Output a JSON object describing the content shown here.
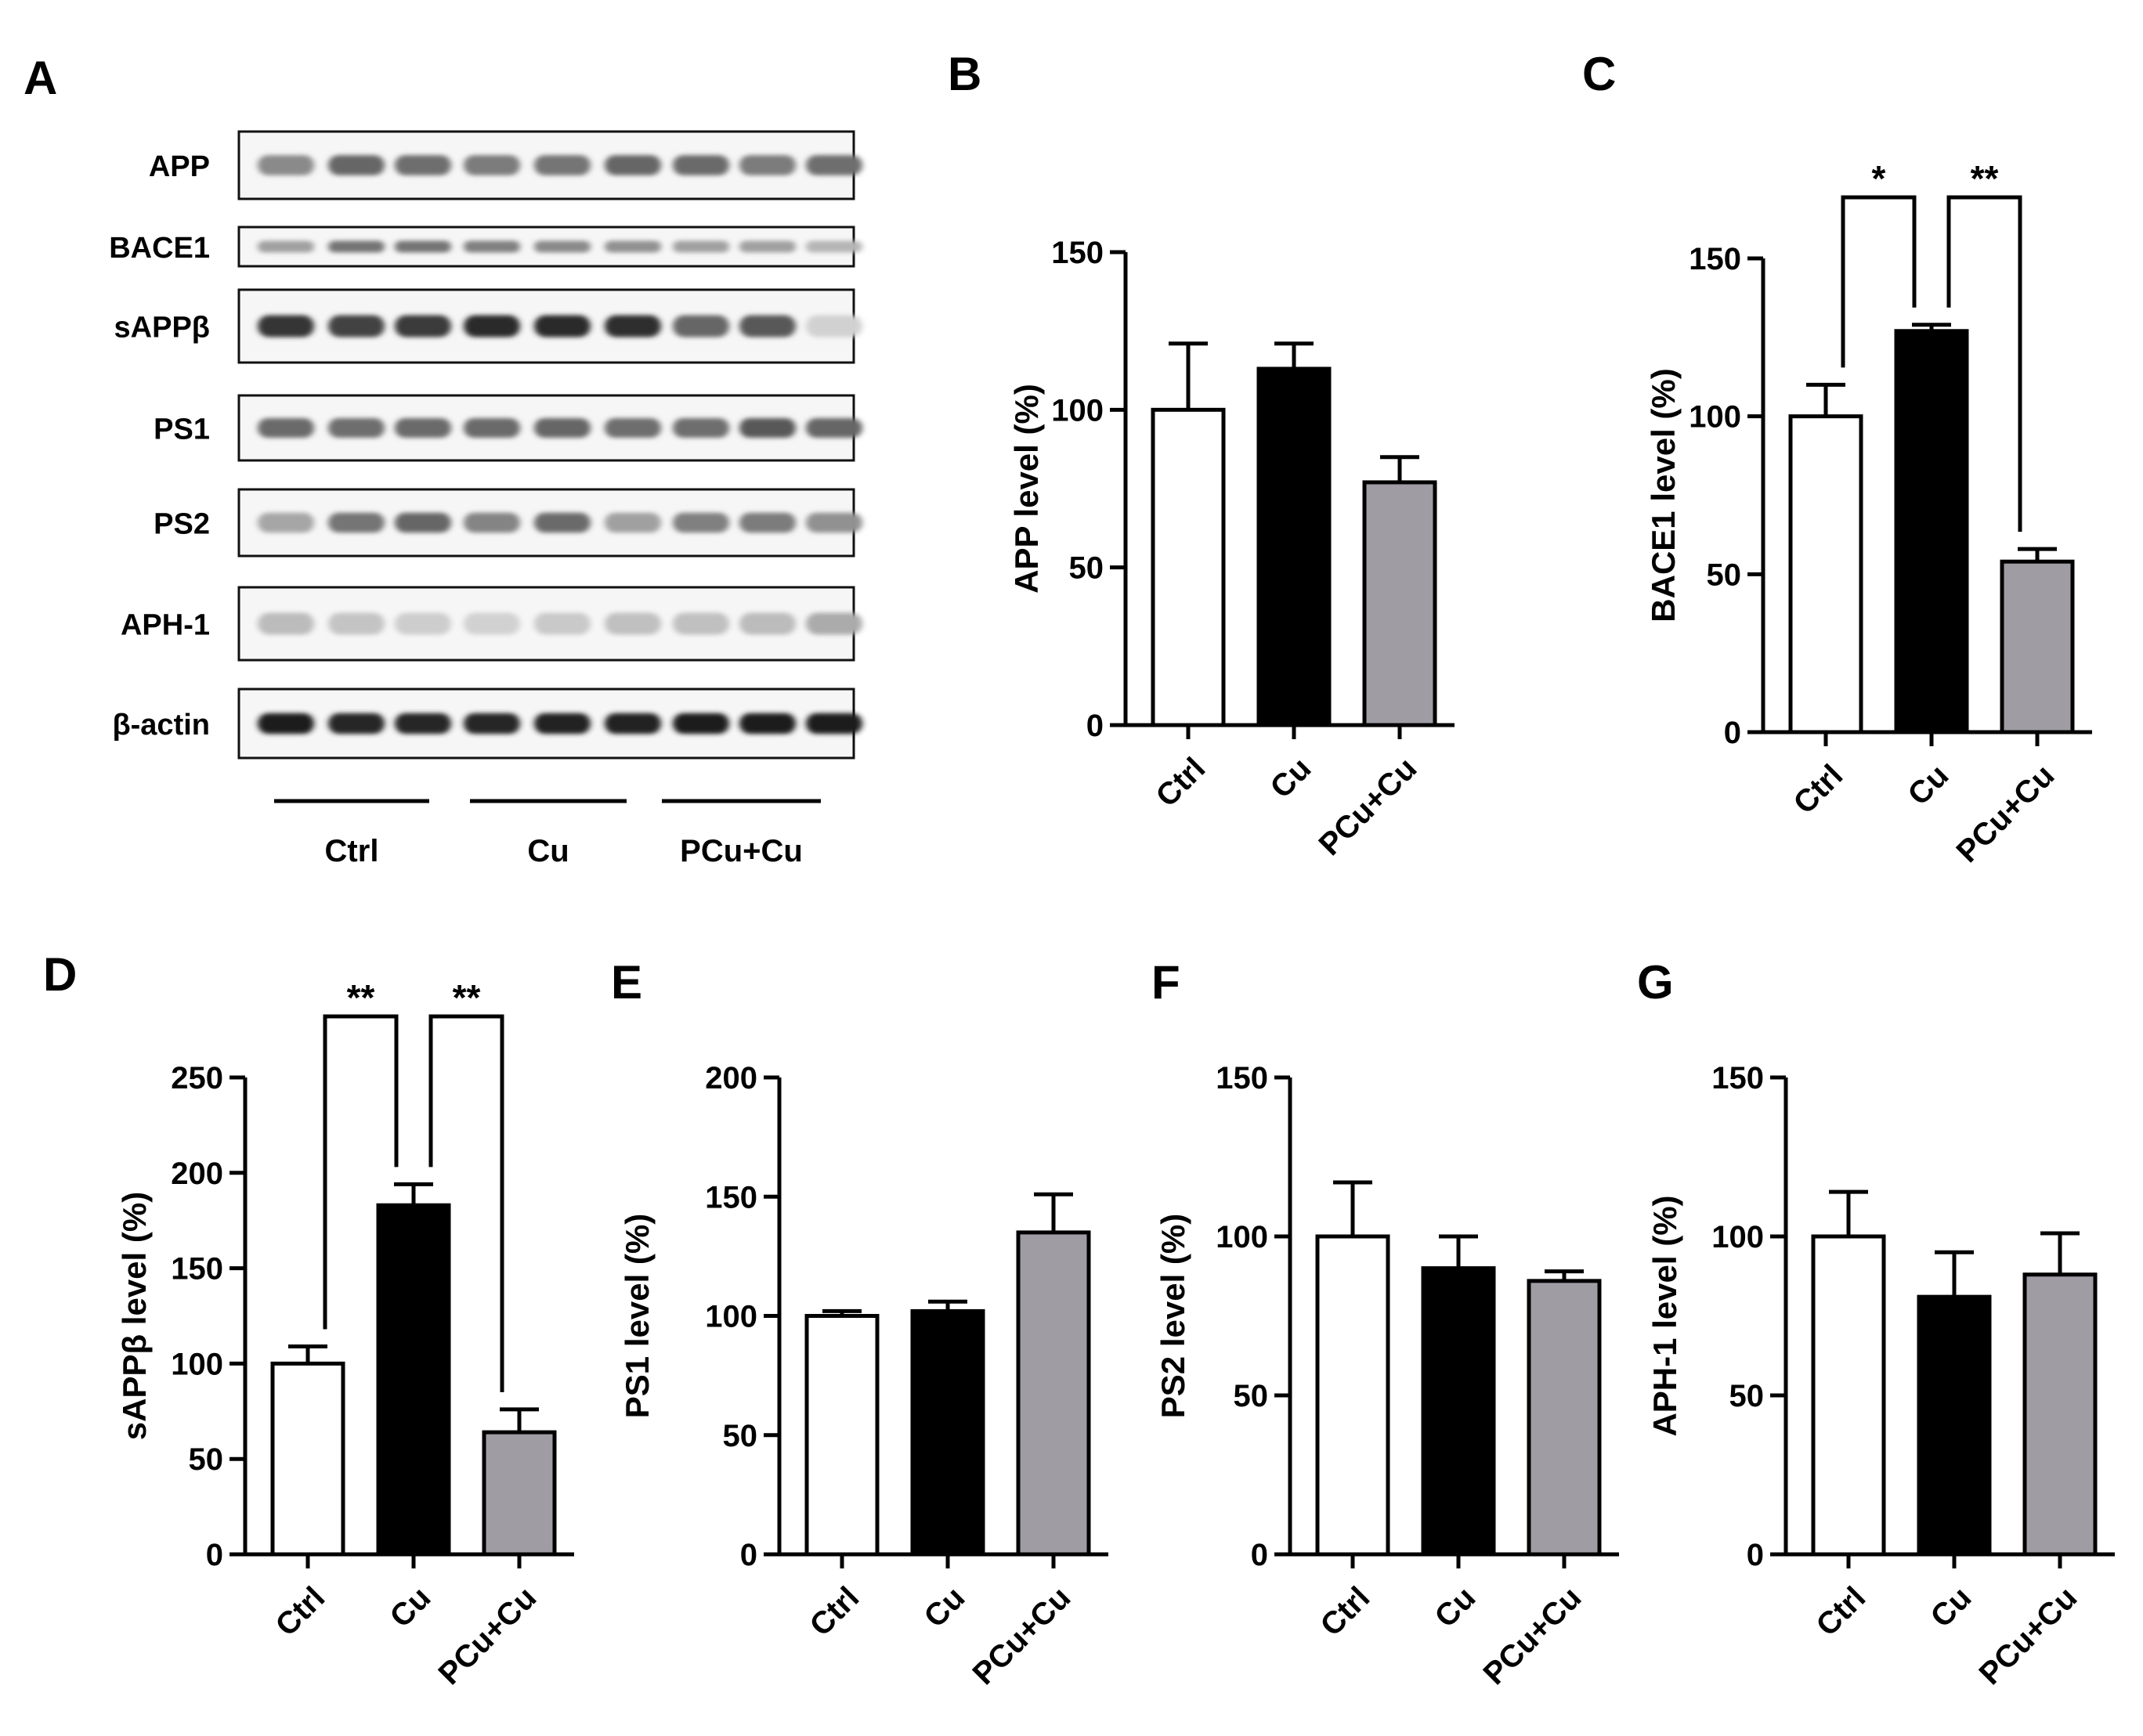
{
  "panel_letters": [
    "A",
    "B",
    "C",
    "D",
    "E",
    "F",
    "G"
  ],
  "western_blot": {
    "letter": "A",
    "rows": [
      {
        "label": "APP",
        "intensity": [
          0.45,
          0.62,
          0.58,
          0.52,
          0.55,
          0.62,
          0.6,
          0.52,
          0.58
        ]
      },
      {
        "label": "BACE1",
        "intensity": [
          0.35,
          0.55,
          0.55,
          0.5,
          0.45,
          0.42,
          0.35,
          0.35,
          0.25
        ]
      },
      {
        "label": "sAPPβ",
        "intensity": [
          0.85,
          0.78,
          0.82,
          0.9,
          0.9,
          0.88,
          0.62,
          0.68,
          0.12
        ]
      },
      {
        "label": "PS1",
        "intensity": [
          0.6,
          0.58,
          0.6,
          0.6,
          0.62,
          0.58,
          0.58,
          0.68,
          0.62
        ]
      },
      {
        "label": "PS2",
        "intensity": [
          0.32,
          0.55,
          0.62,
          0.48,
          0.6,
          0.35,
          0.5,
          0.52,
          0.42
        ]
      },
      {
        "label": "APH-1",
        "intensity": [
          0.22,
          0.18,
          0.14,
          0.12,
          0.16,
          0.2,
          0.2,
          0.22,
          0.3
        ]
      },
      {
        "label": "β-actin",
        "intensity": [
          0.95,
          0.92,
          0.92,
          0.92,
          0.93,
          0.93,
          0.95,
          0.95,
          0.95
        ]
      }
    ],
    "groups": [
      "Ctrl",
      "Cu",
      "PCu+Cu"
    ]
  },
  "chart_data": [
    {
      "panel": "B",
      "type": "bar",
      "categories": [
        "Ctrl",
        "Cu",
        "PCu+Cu"
      ],
      "values": [
        100,
        113,
        77
      ],
      "errors": [
        21,
        8,
        8
      ],
      "colors": [
        "#ffffff",
        "#000000",
        "#a09ca3"
      ],
      "ylabel": "APP level (%)",
      "ylim": [
        0,
        150
      ],
      "yticks": [
        0,
        50,
        100,
        150
      ],
      "significance": []
    },
    {
      "panel": "C",
      "type": "bar",
      "categories": [
        "Ctrl",
        "Cu",
        "PCu+Cu"
      ],
      "values": [
        100,
        127,
        54
      ],
      "errors": [
        10,
        2,
        4
      ],
      "colors": [
        "#ffffff",
        "#000000",
        "#a09ca3"
      ],
      "ylabel": "BACE1 level (%)",
      "ylim": [
        0,
        150
      ],
      "yticks": [
        0,
        50,
        100,
        150
      ],
      "significance": [
        {
          "from": 0,
          "to": 1,
          "label": "*"
        },
        {
          "from": 1,
          "to": 2,
          "label": "**"
        }
      ]
    },
    {
      "panel": "D",
      "type": "bar",
      "categories": [
        "Ctrl",
        "Cu",
        "PCu+Cu"
      ],
      "values": [
        100,
        183,
        64
      ],
      "errors": [
        9,
        11,
        12
      ],
      "colors": [
        "#ffffff",
        "#000000",
        "#a09ca3"
      ],
      "ylabel": "sAPPβ  level (%)",
      "ylim": [
        0,
        250
      ],
      "yticks": [
        0,
        50,
        100,
        150,
        200,
        250
      ],
      "significance": [
        {
          "from": 0,
          "to": 1,
          "label": "**"
        },
        {
          "from": 1,
          "to": 2,
          "label": "**"
        }
      ]
    },
    {
      "panel": "E",
      "type": "bar",
      "categories": [
        "Ctrl",
        "Cu",
        "PCu+Cu"
      ],
      "values": [
        100,
        102,
        135
      ],
      "errors": [
        2,
        4,
        16
      ],
      "colors": [
        "#ffffff",
        "#000000",
        "#a09ca3"
      ],
      "ylabel": "PS1 level (%)",
      "ylim": [
        0,
        200
      ],
      "yticks": [
        0,
        50,
        100,
        150,
        200
      ],
      "significance": []
    },
    {
      "panel": "F",
      "type": "bar",
      "categories": [
        "Ctrl",
        "Cu",
        "PCu+Cu"
      ],
      "values": [
        100,
        90,
        86
      ],
      "errors": [
        17,
        10,
        3
      ],
      "colors": [
        "#ffffff",
        "#000000",
        "#a09ca3"
      ],
      "ylabel": "PS2 level (%)",
      "ylim": [
        0,
        150
      ],
      "yticks": [
        0,
        50,
        100,
        150
      ],
      "significance": []
    },
    {
      "panel": "G",
      "type": "bar",
      "categories": [
        "Ctrl",
        "Cu",
        "PCu+Cu"
      ],
      "values": [
        100,
        81,
        88
      ],
      "errors": [
        14,
        14,
        13
      ],
      "colors": [
        "#ffffff",
        "#000000",
        "#a09ca3"
      ],
      "ylabel": "APH-1 level (%)",
      "ylim": [
        0,
        150
      ],
      "yticks": [
        0,
        50,
        100,
        150
      ],
      "significance": []
    }
  ]
}
